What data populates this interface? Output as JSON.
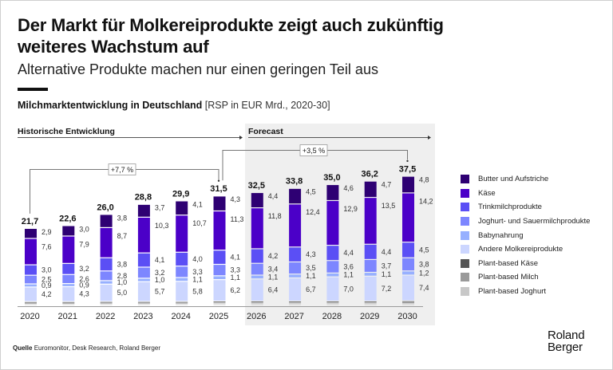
{
  "header": {
    "title": "Der Markt für Molkereiprodukte zeigt auch zukünftig weiteres Wachstum auf",
    "subtitle": "Alternative Produkte machen nur einen geringen Teil aus"
  },
  "chart_header": {
    "title_bold": "Milchmarktentwicklung in Deutschland",
    "title_unit": "[RSP in EUR Mrd., 2020-30]"
  },
  "sections": {
    "historic": "Historische Entwicklung",
    "forecast": "Forecast"
  },
  "chart_data": {
    "type": "bar",
    "stacked": true,
    "title": "Milchmarktentwicklung in Deutschland",
    "unit": "RSP in EUR Mrd., 2020-30",
    "categories": [
      "2020",
      "2021",
      "2022",
      "2023",
      "2024",
      "2025",
      "2026",
      "2027",
      "2028",
      "2029",
      "2030"
    ],
    "forecast_from": "2026",
    "totals": [
      21.7,
      22.6,
      26.0,
      28.8,
      29.9,
      31.5,
      32.5,
      33.8,
      35.0,
      36.2,
      37.5
    ],
    "total_labels": [
      "21,7",
      "22,6",
      "26,0",
      "28,8",
      "29,9",
      "31,5",
      "32,5",
      "33,8",
      "35,0",
      "36,2",
      "37,5"
    ],
    "series": [
      {
        "name": "Plant-based Joghurt",
        "color": "#c8c8c8",
        "values": [
          0.1,
          0.1,
          0.1,
          0.1,
          0.1,
          0.1,
          0.1,
          0.1,
          0.1,
          0.1,
          0.1
        ],
        "labeled": false
      },
      {
        "name": "Plant-based Milch",
        "color": "#9a9a9a",
        "values": [
          0.3,
          0.3,
          0.4,
          0.4,
          0.4,
          0.5,
          0.5,
          0.5,
          0.5,
          0.5,
          0.6
        ],
        "labeled": false
      },
      {
        "name": "Plant-based Käse",
        "color": "#555555",
        "values": [
          0.05,
          0.05,
          0.05,
          0.05,
          0.05,
          0.05,
          0.05,
          0.05,
          0.05,
          0.05,
          0.05
        ],
        "labeled": false
      },
      {
        "name": "Andere Molkereiprodukte",
        "color": "#ccd6ff",
        "values": [
          4.2,
          4.3,
          5.0,
          5.7,
          5.8,
          6.2,
          6.4,
          6.7,
          7.0,
          7.2,
          7.4
        ],
        "labels": [
          "4,2",
          "4,3",
          "5,0",
          "5,7",
          "5,8",
          "6,2",
          "6,4",
          "6,7",
          "7,0",
          "7,2",
          "7,4"
        ],
        "labeled": true
      },
      {
        "name": "Babynahrung",
        "color": "#97b0ff",
        "values": [
          0.9,
          0.9,
          1.0,
          1.0,
          1.1,
          1.1,
          1.1,
          1.1,
          1.1,
          1.1,
          1.2
        ],
        "labels": [
          "0,9",
          "0,9",
          "1,0",
          "1,0",
          "1,1",
          "1,1",
          "1,1",
          "1,1",
          "1,1",
          "1,1",
          "1,2"
        ],
        "labeled": true
      },
      {
        "name": "Joghurt- und Sauermilchprodukte",
        "color": "#7d86ff",
        "values": [
          2.5,
          2.6,
          2.8,
          3.2,
          3.3,
          3.3,
          3.4,
          3.5,
          3.6,
          3.7,
          3.8
        ],
        "labels": [
          "2,5",
          "2,6",
          "2,8",
          "3,2",
          "3,3",
          "3,3",
          "3,4",
          "3,5",
          "3,6",
          "3,7",
          "3,8"
        ],
        "labeled": true
      },
      {
        "name": "Trinkmilchprodukte",
        "color": "#5b4ff5",
        "values": [
          3.0,
          3.2,
          3.8,
          4.1,
          4.0,
          4.1,
          4.2,
          4.3,
          4.4,
          4.4,
          4.5
        ],
        "labels": [
          "3,0",
          "3,2",
          "3,8",
          "4,1",
          "4,0",
          "4,1",
          "4,2",
          "4,3",
          "4,4",
          "4,4",
          "4,5"
        ],
        "labeled": true
      },
      {
        "name": "Käse",
        "color": "#4b00c8",
        "values": [
          7.6,
          7.9,
          8.7,
          10.3,
          10.7,
          11.3,
          11.8,
          12.4,
          12.9,
          13.5,
          14.2
        ],
        "labels": [
          "7,6",
          "7,9",
          "8,7",
          "10,3",
          "10,7",
          "11,3",
          "11,8",
          "12,4",
          "12,9",
          "13,5",
          "14,2"
        ],
        "labeled": true
      },
      {
        "name": "Butter und Aufstriche",
        "color": "#2e0073",
        "values": [
          2.9,
          3.0,
          3.8,
          3.7,
          4.1,
          4.3,
          4.4,
          4.5,
          4.6,
          4.7,
          4.8
        ],
        "labels": [
          "2,9",
          "3,0",
          "3,8",
          "3,7",
          "4,1",
          "4,3",
          "4,4",
          "4,5",
          "4,6",
          "4,7",
          "4,8"
        ],
        "labeled": true
      }
    ],
    "annotations": [
      {
        "label": "+7,7 %",
        "from": "2020",
        "to": "2025",
        "meaning": "CAGR 2020-2025"
      },
      {
        "label": "+3,5 %",
        "from": "2025",
        "to": "2030",
        "meaning": "CAGR 2025-2030"
      }
    ],
    "legend": {
      "position": "right",
      "entries": [
        "Butter und Aufstriche",
        "Käse",
        "Trinkmilchprodukte",
        "Joghurt- und Sauermilchprodukte",
        "Babynahrung",
        "Andere Molkereiprodukte",
        "Plant-based Käse",
        "Plant-based Milch",
        "Plant-based Joghurt"
      ]
    },
    "ylabel": "",
    "xlabel": "",
    "grid": false
  },
  "legend_colors": [
    "#2e0073",
    "#4b00c8",
    "#5b4ff5",
    "#7d86ff",
    "#97b0ff",
    "#ccd6ff",
    "#555555",
    "#9a9a9a",
    "#c8c8c8"
  ],
  "footer": {
    "source_label": "Quelle",
    "source_text": "Euromonitor, Desk Research, Roland Berger",
    "logo_line1": "Roland",
    "logo_line2": "Berger"
  }
}
